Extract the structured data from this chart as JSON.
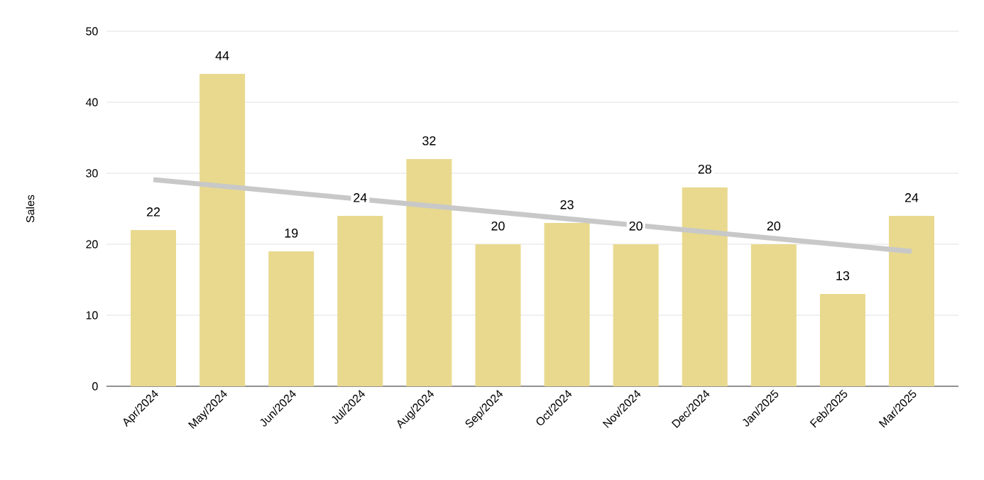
{
  "chart_data": {
    "type": "bar",
    "ylabel": "Sales",
    "categories": [
      "Apr/2024",
      "May/2024",
      "Jun/2024",
      "Jul/2024",
      "Aug/2024",
      "Sep/2024",
      "Oct/2024",
      "Nov/2024",
      "Dec/2024",
      "Jan/2025",
      "Feb/2025",
      "Mar/2025"
    ],
    "series": [
      {
        "color": "#e8d98e",
        "values": [
          22,
          44,
          19,
          24,
          32,
          20,
          23,
          20,
          28,
          20,
          13,
          24
        ],
        "value_labels": [
          "22",
          "44",
          "19",
          "24",
          "32",
          "20",
          "23",
          "20",
          "28",
          "20",
          "13",
          "24"
        ]
      },
      {
        "type": "line",
        "color": "#c8c8c8",
        "x": [
          "Apr/2024",
          "Mar/2025"
        ],
        "values": [
          29.1,
          19.0
        ]
      }
    ],
    "ylim": [
      0,
      50
    ],
    "yticks": [
      0,
      10,
      20,
      30,
      40,
      50
    ],
    "grid": "y"
  }
}
